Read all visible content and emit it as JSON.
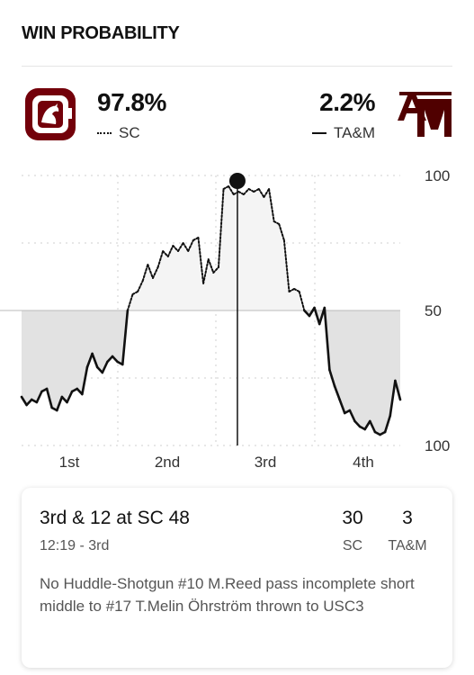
{
  "header": {
    "title": "WIN PROBABILITY"
  },
  "teams": {
    "home": {
      "abbr": "SC",
      "pct": "97.8%",
      "legend_style": "dotted",
      "logo": "gamecock-logo",
      "color": "#73000a"
    },
    "away": {
      "abbr": "TA&M",
      "pct": "2.2%",
      "legend_style": "solid",
      "logo": "atm-logo",
      "color": "#500000"
    }
  },
  "play": {
    "title": "3rd & 12 at SC 48",
    "time": "12:19 - 3rd",
    "description": "No Huddle-Shotgun #10 M.Reed pass incomplete short middle to #17 T.Melin Öhrström thrown to USC3",
    "score_home": "30",
    "score_away": "3",
    "label_home": "SC",
    "label_away": "TA&M"
  },
  "chart_data": {
    "type": "line",
    "y_tick_labels": [
      "100",
      "50",
      "100"
    ],
    "x_tick_labels": [
      "1st",
      "2nd",
      "3rd",
      "4th"
    ],
    "ylim": [
      0,
      100
    ],
    "grid": true,
    "marker_index": 0.57,
    "series": [
      {
        "name": "SC",
        "style": "dotted-above-solid-below",
        "values": [
          [
            0,
            18
          ],
          [
            1,
            15
          ],
          [
            2,
            17
          ],
          [
            3,
            16
          ],
          [
            4,
            20
          ],
          [
            5,
            21
          ],
          [
            6,
            14
          ],
          [
            7,
            13
          ],
          [
            8,
            18
          ],
          [
            9,
            16
          ],
          [
            10,
            20
          ],
          [
            11,
            21
          ],
          [
            12,
            19
          ],
          [
            13,
            29
          ],
          [
            14,
            34
          ],
          [
            15,
            29
          ],
          [
            16,
            27
          ],
          [
            17,
            31
          ],
          [
            18,
            33
          ],
          [
            19,
            31
          ],
          [
            20,
            30
          ],
          [
            21,
            50
          ],
          [
            22,
            56
          ],
          [
            23,
            57
          ],
          [
            24,
            61
          ],
          [
            25,
            67
          ],
          [
            26,
            62
          ],
          [
            27,
            66
          ],
          [
            28,
            72
          ],
          [
            29,
            70
          ],
          [
            30,
            74
          ],
          [
            31,
            72
          ],
          [
            32,
            75
          ],
          [
            33,
            72
          ],
          [
            34,
            76
          ],
          [
            35,
            77
          ],
          [
            36,
            60
          ],
          [
            37,
            69
          ],
          [
            38,
            64
          ],
          [
            39,
            66
          ],
          [
            40,
            95
          ],
          [
            41,
            96
          ],
          [
            42,
            93
          ],
          [
            43,
            94
          ],
          [
            44,
            93
          ],
          [
            45,
            95
          ],
          [
            46,
            94
          ],
          [
            47,
            95
          ],
          [
            48,
            92
          ],
          [
            49,
            95
          ],
          [
            50,
            83
          ],
          [
            51,
            82
          ],
          [
            52,
            76
          ],
          [
            53,
            57
          ],
          [
            54,
            58
          ],
          [
            55,
            57
          ],
          [
            56,
            50
          ],
          [
            57,
            48
          ],
          [
            58,
            51
          ],
          [
            59,
            45
          ],
          [
            60,
            51
          ],
          [
            61,
            28
          ],
          [
            62,
            22
          ],
          [
            63,
            17
          ],
          [
            64,
            12
          ],
          [
            65,
            13
          ],
          [
            66,
            9
          ],
          [
            67,
            7
          ],
          [
            68,
            6
          ],
          [
            69,
            9
          ],
          [
            70,
            5
          ],
          [
            71,
            4
          ],
          [
            72,
            5
          ],
          [
            73,
            11
          ],
          [
            74,
            24
          ],
          [
            75,
            17
          ]
        ]
      }
    ]
  }
}
